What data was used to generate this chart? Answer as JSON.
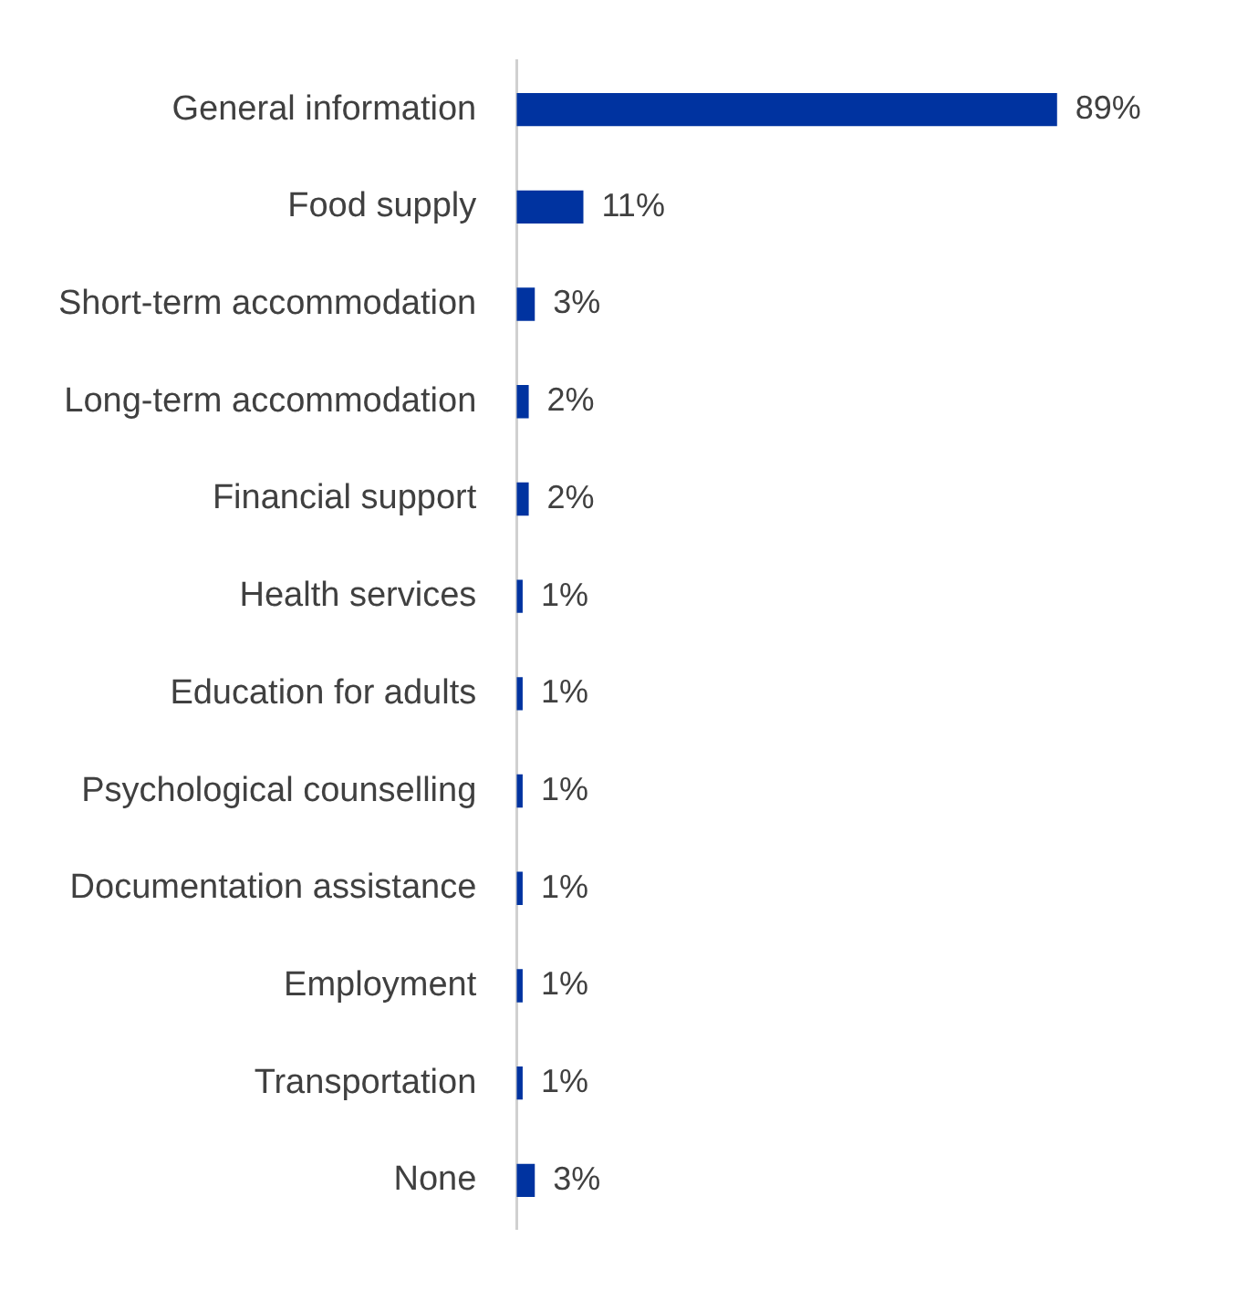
{
  "chart_data": {
    "type": "bar",
    "orientation": "horizontal",
    "categories": [
      "General information",
      "Food supply",
      "Short-term accommodation",
      "Long-term accommodation",
      "Financial support",
      "Health services",
      "Education for adults",
      "Psychological counselling",
      "Documentation assistance",
      "Employment",
      "Transportation",
      "None"
    ],
    "values": [
      89,
      11,
      3,
      2,
      2,
      1,
      1,
      1,
      1,
      1,
      1,
      3
    ],
    "value_labels": [
      "89%",
      "11%",
      "3%",
      "2%",
      "2%",
      "1%",
      "1%",
      "1%",
      "1%",
      "1%",
      "1%",
      "3%"
    ],
    "color": "#0033a0",
    "legend": false
  }
}
